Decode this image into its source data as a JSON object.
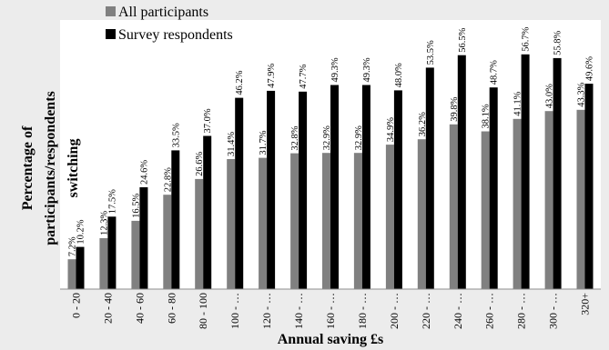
{
  "chart_data": {
    "type": "bar",
    "title": "",
    "xlabel": "Annual saving £s",
    "ylabel": "Percentage of participants/respondents switching",
    "ylabel_lines": [
      "Percentage of",
      "participants/respondents",
      "switching"
    ],
    "ylim": [
      0,
      65
    ],
    "legend_position": "top-left",
    "grid": false,
    "categories": [
      "0 - 20",
      "20 - 40",
      "40 - 60",
      "60 - 80",
      "80 - 100",
      "100 - …",
      "120 - …",
      "140 - …",
      "160 - …",
      "180 - …",
      "200 - …",
      "220 - …",
      "240 - …",
      "260 - …",
      "280 - …",
      "300 - …",
      "320+"
    ],
    "series": [
      {
        "name": "All participants",
        "color": "#808080",
        "values": [
          7.2,
          12.3,
          16.5,
          22.8,
          26.6,
          31.4,
          31.7,
          32.8,
          32.9,
          32.9,
          34.9,
          36.2,
          39.8,
          38.1,
          41.1,
          43.0,
          43.3
        ],
        "labels": [
          "7.2%",
          "12.3%",
          "16.5%",
          "22.8%",
          "26.6%",
          "31.4%",
          "31.7%",
          "32.8%",
          "32.9%",
          "32.9%",
          "34.9%",
          "36.2%",
          "39.8%",
          "38.1%",
          "41.1%",
          "43.0%",
          "43.3%"
        ]
      },
      {
        "name": "Survey respondents",
        "color": "#000000",
        "values": [
          10.2,
          17.5,
          24.6,
          33.5,
          37.0,
          46.2,
          47.9,
          47.7,
          49.3,
          49.3,
          48.0,
          53.5,
          56.5,
          48.7,
          56.7,
          55.8,
          49.6
        ],
        "labels": [
          "10.2%",
          "17.5%",
          "24.6%",
          "33.5%",
          "37.0%",
          "46.2%",
          "47.9%",
          "47.7%",
          "49.3%",
          "49.3%",
          "48.0%",
          "53.5%",
          "56.5%",
          "48.7%",
          "56.7%",
          "55.8%",
          "49.6%"
        ]
      }
    ]
  }
}
